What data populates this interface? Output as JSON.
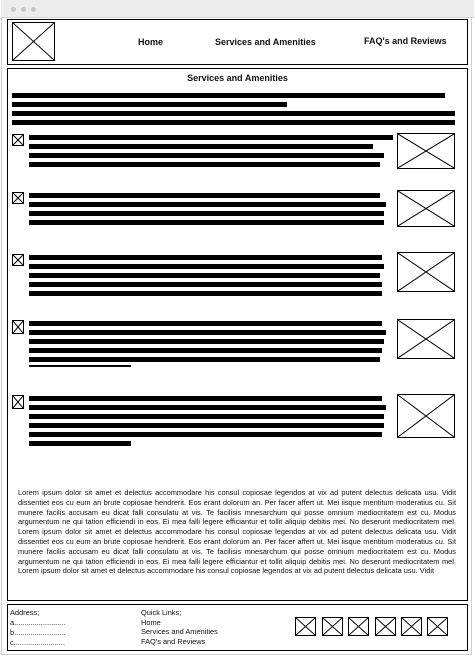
{
  "header": {
    "logo_icon": "image-placeholder-icon",
    "nav": [
      "Home",
      "Services and Amenities",
      "FAQ's and Reviews"
    ]
  },
  "main": {
    "title": "Services and Amenities",
    "feature_items": [
      {
        "icon": "image-placeholder-icon",
        "image": "image-placeholder-icon"
      },
      {
        "icon": "image-placeholder-icon",
        "image": "image-placeholder-icon"
      },
      {
        "icon": "image-placeholder-icon",
        "image": "image-placeholder-icon"
      },
      {
        "icon": "image-placeholder-icon",
        "image": "image-placeholder-icon"
      },
      {
        "icon": "image-placeholder-icon",
        "image": "image-placeholder-icon"
      }
    ],
    "lorem": "Lorem ipsum dolor sit amet et delectus accommodare his consul copiosae legendos at vix ad putent delectus delicata usu. Vidit dissentiet eos cu eum an brute copiosae hendrerit. Eos erant dolorum an. Per facer affert ut. Mei iisque mentitum moderatius cu. Sit munere facilis accusam eu dicat falli consulatu at vis. Te facilisis mnesarchum qui posse omnium mediocritatem est cu. Modus argumentum ne qui tation efficiendi in eos. Ei mea falli legere efficiantur et tollit aliquip debitis mei. No deserunt mediocritatem mel. Lorem ipsum dolor sit amet et delectus accommodare his consul copiosae legendos at vix ad putent delectus delicata usu. Vidit dissentiet eos cu eum an brute copiosae hendrerit. Eos erant dolorum an. Per facer affert ut. Mei iisque mentitum moderatius cu. Sit munere facilis accusam eu dicat falli consulatu at vis. Te facilisis mnesarchum qui posse omnium mediocritatem est cu. Modus argumentum ne qui tation efficiendi in eos. Ei mea falli legere efficiantur et tollit aliquip debitis mei. No deserunt mediocritatem mel. Lorem ipsum dolor sit amet et delectus accommodare his consul copiosae legendos at vix ad putent delectus delicata usu. Vidit"
  },
  "footer": {
    "address_label": "Address;",
    "address_lines": [
      "a.........................",
      "b.........................",
      "c........................."
    ],
    "quick_links_label": "Quick Links;",
    "quick_links": [
      "Home",
      "Services and Amenities",
      "FAQ's and Reviews"
    ],
    "social_icons": [
      "image-placeholder-icon",
      "image-placeholder-icon",
      "image-placeholder-icon",
      "image-placeholder-icon",
      "image-placeholder-icon",
      "image-placeholder-icon"
    ]
  }
}
